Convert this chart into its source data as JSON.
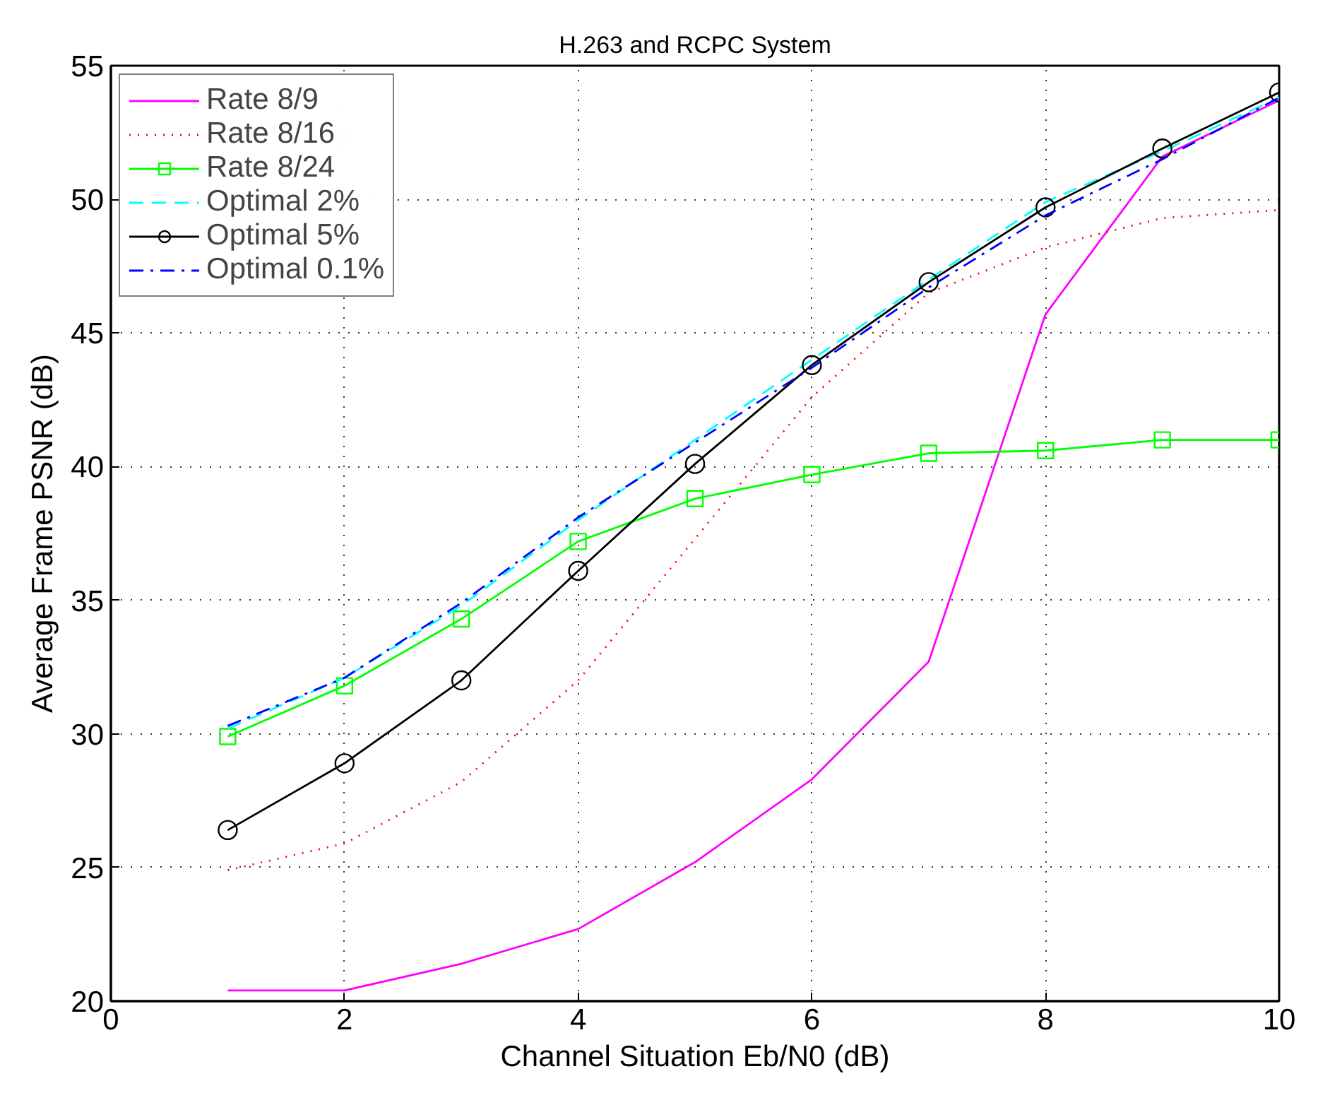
{
  "chart_data": {
    "type": "line",
    "title": "H.263 and RCPC System",
    "xlabel": "Channel Situation Eb/N0 (dB)",
    "ylabel": "Average Frame PSNR (dB)",
    "x": [
      1,
      2,
      3,
      4,
      5,
      6,
      7,
      8,
      9,
      10
    ],
    "series": [
      {
        "name": "Rate 8/9",
        "color": "#ff00ff",
        "line_style": "solid",
        "marker": "none",
        "values": [
          20.4,
          20.4,
          21.4,
          22.7,
          25.2,
          28.3,
          32.7,
          45.7,
          51.6,
          53.7
        ]
      },
      {
        "name": "Rate 8/16",
        "color": "#ff0000",
        "line_style": "dotted",
        "marker": "none",
        "values": [
          24.9,
          25.9,
          28.2,
          32.0,
          37.3,
          42.6,
          46.5,
          48.2,
          49.3,
          49.6
        ]
      },
      {
        "name": "Rate 8/24",
        "color": "#00ff00",
        "line_style": "solid",
        "marker": "square",
        "values": [
          29.9,
          31.8,
          34.3,
          37.2,
          38.8,
          39.7,
          40.5,
          40.6,
          41.0,
          41.0
        ]
      },
      {
        "name": "Optimal 2%",
        "color": "#00ffff",
        "line_style": "dashed",
        "marker": "none",
        "values": [
          30.2,
          32.1,
          34.8,
          38.0,
          41.0,
          44.0,
          47.0,
          49.9,
          51.8,
          53.8
        ]
      },
      {
        "name": "Optimal 5%",
        "color": "#000000",
        "line_style": "solid",
        "marker": "circle",
        "values": [
          26.4,
          28.9,
          32.0,
          36.1,
          40.1,
          43.8,
          46.9,
          49.7,
          51.9,
          54.0
        ]
      },
      {
        "name": "Optimal 0.1%",
        "color": "#0000ff",
        "line_style": "dashdot",
        "marker": "none",
        "values": [
          30.3,
          32.1,
          34.9,
          38.1,
          40.9,
          43.7,
          46.7,
          49.4,
          51.5,
          53.8
        ]
      }
    ],
    "xlim": [
      0,
      10
    ],
    "xticks": [
      0,
      2,
      4,
      6,
      8,
      10
    ],
    "ylim": [
      20,
      55
    ],
    "yticks": [
      20,
      25,
      30,
      35,
      40,
      45,
      50,
      55
    ],
    "grid": true,
    "legend": "top left"
  }
}
